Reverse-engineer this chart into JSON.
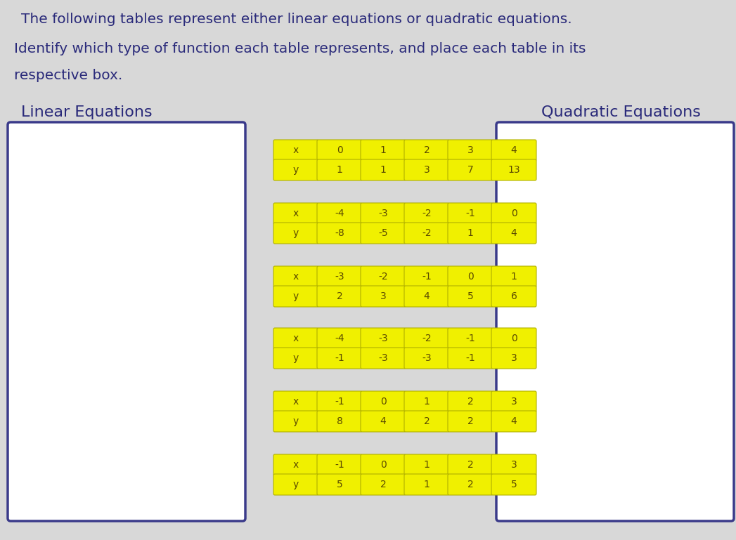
{
  "title_line1": "The following tables represent either linear equations or quadratic equations.",
  "title_line2": "Identify which type of function each table represents, and place each table in its",
  "title_line3": "respective box.",
  "label_linear": "Linear Equations",
  "label_quadratic": "Quadratic Equations",
  "bg_color": "#d8d8d8",
  "table_bg": "#f0f000",
  "table_border": "#b0b000",
  "box_border": "#3a3a8a",
  "text_color_title": "#2a2a7a",
  "text_color_table": "#5a4a00",
  "tables": [
    {
      "x_vals": [
        "x",
        "0",
        "1",
        "2",
        "3",
        "4"
      ],
      "y_vals": [
        "y",
        "1",
        "1",
        "3",
        "7",
        "13"
      ]
    },
    {
      "x_vals": [
        "x",
        "-4",
        "-3",
        "-2",
        "-1",
        "0"
      ],
      "y_vals": [
        "y",
        "-8",
        "-5",
        "-2",
        "1",
        "4"
      ]
    },
    {
      "x_vals": [
        "x",
        "-3",
        "-2",
        "-1",
        "0",
        "1"
      ],
      "y_vals": [
        "y",
        "2",
        "3",
        "4",
        "5",
        "6"
      ]
    },
    {
      "x_vals": [
        "x",
        "-4",
        "-3",
        "-2",
        "-1",
        "0"
      ],
      "y_vals": [
        "y",
        "-1",
        "-3",
        "-3",
        "-1",
        "3"
      ]
    },
    {
      "x_vals": [
        "x",
        "-1",
        "0",
        "1",
        "2",
        "3"
      ],
      "y_vals": [
        "y",
        "8",
        "4",
        "2",
        "2",
        "4"
      ]
    },
    {
      "x_vals": [
        "x",
        "-1",
        "0",
        "1",
        "2",
        "3"
      ],
      "y_vals": [
        "y",
        "5",
        "2",
        "1",
        "2",
        "5"
      ]
    }
  ]
}
